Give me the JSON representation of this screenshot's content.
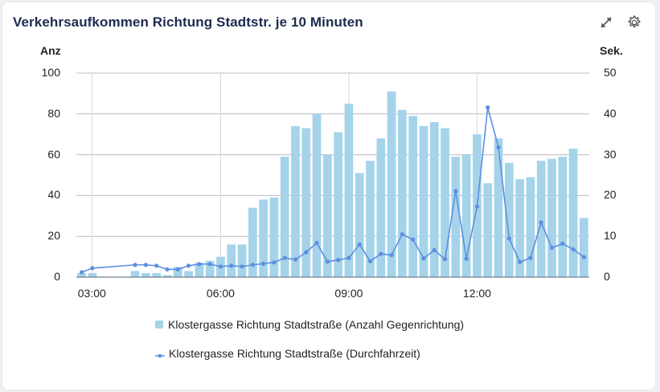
{
  "header": {
    "title": "Verkehrsaufkommen Richtung Stadtstr. je 10 Minuten",
    "icons": [
      "expand-icon",
      "gear-icon"
    ]
  },
  "colors": {
    "bar": "#a5d3ea",
    "line": "#5b8fe0",
    "grid": "#bdbdbd",
    "title": "#1d2b4f",
    "background": "#eef0f4"
  },
  "chart_data": {
    "type": "bar",
    "title": "Verkehrsaufkommen Richtung Stadtstr. je 10 Minuten",
    "xlabel": "",
    "ylabel": "Anz",
    "y2label": "Sek.",
    "ylim": [
      0,
      100
    ],
    "y2lim": [
      0,
      50
    ],
    "yticks": [
      "0",
      "20",
      "40",
      "60",
      "80",
      "100"
    ],
    "y2ticks": [
      "0",
      "10",
      "20",
      "30",
      "40",
      "50"
    ],
    "xticks": [
      {
        "label": "03:00",
        "slot": 1.45
      },
      {
        "label": "06:00",
        "slot": 13.5
      },
      {
        "label": "09:00",
        "slot": 25.5
      },
      {
        "label": "12:00",
        "slot": 37.5
      }
    ],
    "grid": true,
    "legend_position": "bottom",
    "slot_count": 48,
    "series": [
      {
        "name": "Klostergasse Richtung Stadtstraße (Anzahl Gegenrichtung)",
        "type": "bar",
        "axis": "left",
        "points": [
          [
            0,
            2
          ],
          [
            1,
            2
          ],
          [
            5,
            3
          ],
          [
            6,
            2
          ],
          [
            7,
            2
          ],
          [
            8,
            1
          ],
          [
            9,
            5
          ],
          [
            10,
            3
          ],
          [
            11,
            7
          ],
          [
            12,
            8
          ],
          [
            13,
            10
          ],
          [
            14,
            16
          ],
          [
            15,
            16
          ],
          [
            16,
            34
          ],
          [
            17,
            38
          ],
          [
            18,
            39
          ],
          [
            19,
            59
          ],
          [
            20,
            74
          ],
          [
            21,
            73
          ],
          [
            22,
            80
          ],
          [
            23,
            60
          ],
          [
            24,
            71
          ],
          [
            25,
            85
          ],
          [
            26,
            51
          ],
          [
            27,
            57
          ],
          [
            28,
            68
          ],
          [
            29,
            91
          ],
          [
            30,
            82
          ],
          [
            31,
            79
          ],
          [
            32,
            74
          ],
          [
            33,
            76
          ],
          [
            34,
            73
          ],
          [
            35,
            59
          ],
          [
            36,
            60
          ],
          [
            37,
            70
          ],
          [
            38,
            46
          ],
          [
            39,
            68
          ],
          [
            40,
            56
          ],
          [
            41,
            48
          ],
          [
            42,
            49
          ],
          [
            43,
            57
          ],
          [
            44,
            58
          ],
          [
            45,
            59
          ],
          [
            46,
            63
          ],
          [
            47,
            29
          ]
        ]
      },
      {
        "name": "Klostergasse Richtung Stadtstraße (Durchfahrzeit)",
        "type": "line",
        "axis": "right",
        "points": [
          [
            0,
            1.2
          ],
          [
            1,
            2.2
          ],
          [
            5,
            3.0
          ],
          [
            6,
            3.0
          ],
          [
            7,
            2.8
          ],
          [
            8,
            1.9
          ],
          [
            9,
            1.9
          ],
          [
            10,
            2.8
          ],
          [
            11,
            3.2
          ],
          [
            12,
            3.2
          ],
          [
            13,
            2.6
          ],
          [
            14,
            2.8
          ],
          [
            15,
            2.6
          ],
          [
            16,
            3.0
          ],
          [
            17,
            3.3
          ],
          [
            18,
            3.6
          ],
          [
            19,
            4.7
          ],
          [
            20,
            4.3
          ],
          [
            21,
            6.1
          ],
          [
            22,
            8.4
          ],
          [
            23,
            3.8
          ],
          [
            24,
            4.2
          ],
          [
            25,
            4.7
          ],
          [
            26,
            8.0
          ],
          [
            27,
            3.9
          ],
          [
            28,
            5.7
          ],
          [
            29,
            5.4
          ],
          [
            30,
            10.5
          ],
          [
            31,
            9.2
          ],
          [
            32,
            4.6
          ],
          [
            33,
            6.6
          ],
          [
            34,
            4.4
          ],
          [
            35,
            21.1
          ],
          [
            36,
            4.5
          ],
          [
            37,
            17.3
          ],
          [
            38,
            41.6
          ],
          [
            39,
            31.8
          ],
          [
            40,
            9.5
          ],
          [
            41,
            3.7
          ],
          [
            42,
            4.7
          ],
          [
            43,
            13.4
          ],
          [
            44,
            7.2
          ],
          [
            45,
            8.2
          ],
          [
            46,
            6.8
          ],
          [
            47,
            4.9
          ]
        ]
      }
    ]
  },
  "legend": {
    "items": [
      {
        "label": "Klostergasse Richtung Stadtstraße (Anzahl Gegenrichtung)"
      },
      {
        "label": "Klostergasse Richtung Stadtstraße (Durchfahrzeit)"
      }
    ]
  }
}
